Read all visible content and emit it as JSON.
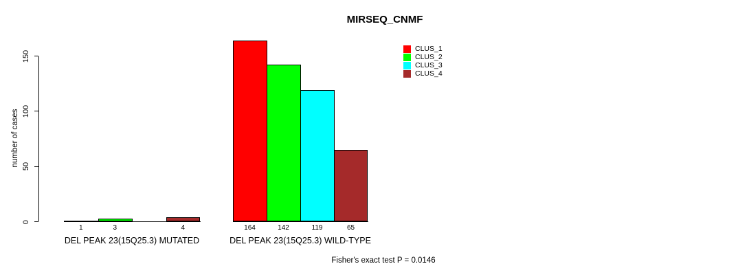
{
  "title": "MIRSEQ_CNMF",
  "ylabel": "number of cases",
  "footer": "Fisher's exact test P = 0.0146",
  "chart_data": {
    "type": "bar",
    "title": "MIRSEQ_CNMF",
    "xlabel": "",
    "ylabel": "number of cases",
    "ylim": [
      0,
      165
    ],
    "yticks": [
      0,
      50,
      100,
      150
    ],
    "grid": false,
    "legend_position": "top-right",
    "series": [
      {
        "name": "CLUS_1",
        "color": "#ff0000"
      },
      {
        "name": "CLUS_2",
        "color": "#00ff00"
      },
      {
        "name": "CLUS_3",
        "color": "#00ffff"
      },
      {
        "name": "CLUS_4",
        "color": "#a52a2a"
      }
    ],
    "categories": [
      "DEL PEAK 23(15Q25.3) MUTATED",
      "DEL PEAK 23(15Q25.3) WILD-TYPE"
    ],
    "groups": [
      {
        "label": "DEL PEAK 23(15Q25.3) MUTATED",
        "values": [
          1,
          3,
          0,
          4
        ]
      },
      {
        "label": "DEL PEAK 23(15Q25.3) WILD-TYPE",
        "values": [
          164,
          142,
          119,
          65
        ]
      }
    ],
    "bar_value_labels_visible": [
      "1",
      "3",
      "4",
      "164",
      "142",
      "119",
      "65"
    ],
    "zero_value_labels_hidden": true,
    "annotation": "Fisher's exact test P = 0.0146"
  }
}
